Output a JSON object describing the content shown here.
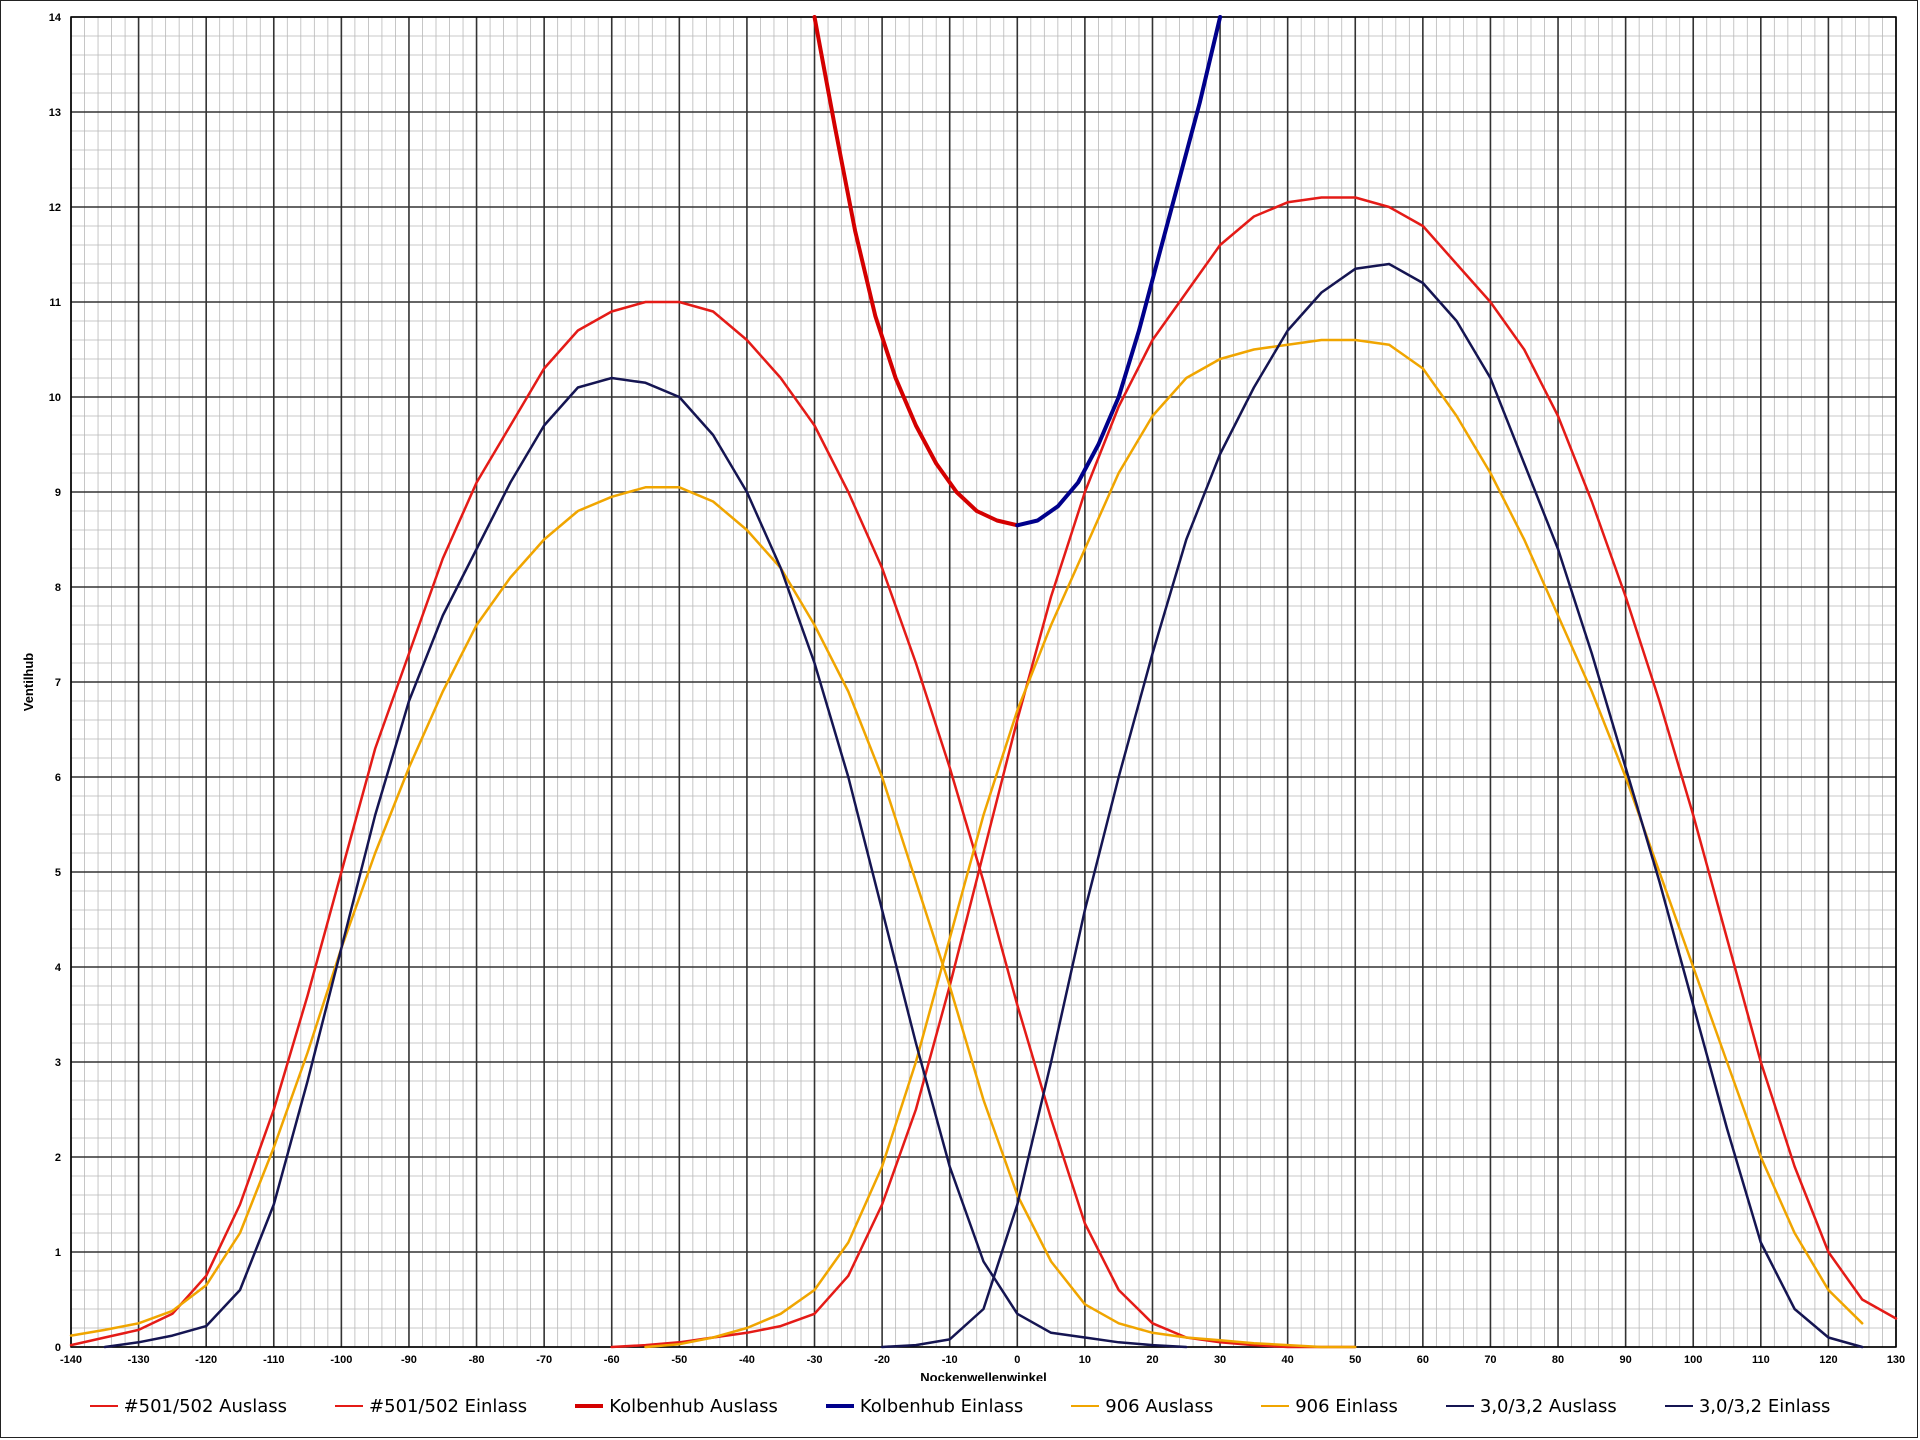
{
  "chart_data": {
    "type": "line",
    "title": "",
    "xlabel": "Nockenwellenwinkel",
    "ylabel": "Ventilhub",
    "xlim": [
      -140,
      130
    ],
    "ylim": [
      0,
      14
    ],
    "grid": true,
    "legend_position": "bottom",
    "x_ticks": [
      "-140",
      "-130",
      "-120",
      "-110",
      "-100",
      "-90",
      "-80",
      "-70",
      "-60",
      "-50",
      "-40",
      "-30",
      "-20",
      "-10",
      "0",
      "10",
      "20",
      "30",
      "40",
      "50",
      "60",
      "70",
      "80",
      "90",
      "100",
      "110",
      "120",
      "130"
    ],
    "y_ticks": [
      "0",
      "1",
      "2",
      "3",
      "4",
      "5",
      "6",
      "7",
      "8",
      "9",
      "10",
      "11",
      "12",
      "13",
      "14"
    ],
    "series": [
      {
        "name": "#501/502 Auslass",
        "color": "#e41b17",
        "width": 2.5,
        "x": [
          -140,
          -135,
          -130,
          -125,
          -120,
          -115,
          -110,
          -105,
          -100,
          -95,
          -90,
          -85,
          -80,
          -75,
          -70,
          -65,
          -60,
          -55,
          -50,
          -45,
          -40,
          -35,
          -30,
          -25,
          -20,
          -15,
          -10,
          -5,
          0,
          5,
          10,
          15,
          20,
          25,
          30,
          35,
          40,
          45,
          50
        ],
        "y": [
          0.02,
          0.1,
          0.18,
          0.35,
          0.75,
          1.5,
          2.5,
          3.7,
          5.0,
          6.3,
          7.3,
          8.3,
          9.1,
          9.7,
          10.3,
          10.7,
          10.9,
          11.0,
          11.0,
          10.9,
          10.6,
          10.2,
          9.7,
          9.0,
          8.2,
          7.2,
          6.1,
          4.9,
          3.6,
          2.4,
          1.3,
          0.6,
          0.25,
          0.1,
          0.05,
          0.02,
          0.0,
          0.0,
          0.0
        ]
      },
      {
        "name": "#501/502 Einlass",
        "color": "#e41b17",
        "width": 2.5,
        "x": [
          -60,
          -55,
          -50,
          -45,
          -40,
          -35,
          -30,
          -25,
          -20,
          -15,
          -10,
          -5,
          0,
          5,
          10,
          15,
          20,
          25,
          30,
          35,
          40,
          45,
          50,
          55,
          60,
          65,
          70,
          75,
          80,
          85,
          90,
          95,
          100,
          105,
          110,
          115,
          120,
          125,
          130
        ],
        "y": [
          0.0,
          0.02,
          0.05,
          0.1,
          0.15,
          0.22,
          0.35,
          0.75,
          1.5,
          2.5,
          3.8,
          5.2,
          6.6,
          7.9,
          9.0,
          9.9,
          10.6,
          11.1,
          11.6,
          11.9,
          12.05,
          12.1,
          12.1,
          12.0,
          11.8,
          11.4,
          11.0,
          10.5,
          9.8,
          8.9,
          7.9,
          6.8,
          5.6,
          4.3,
          3.0,
          1.9,
          1.0,
          0.5,
          0.3
        ]
      },
      {
        "name": "Kolbenhub Auslass",
        "color": "#d40000",
        "width": 4,
        "x": [
          -30,
          -27,
          -24,
          -21,
          -18,
          -15,
          -12,
          -9,
          -6,
          -3,
          0
        ],
        "y": [
          14.0,
          12.85,
          11.75,
          10.85,
          10.2,
          9.7,
          9.3,
          9.0,
          8.8,
          8.7,
          8.65
        ]
      },
      {
        "name": "Kolbenhub Einlass",
        "color": "#00008b",
        "width": 4,
        "x": [
          0,
          3,
          6,
          9,
          12,
          15,
          18,
          21,
          24,
          27,
          30
        ],
        "y": [
          8.65,
          8.7,
          8.85,
          9.1,
          9.5,
          10.0,
          10.7,
          11.5,
          12.3,
          13.1,
          14.0
        ]
      },
      {
        "name": "906 Auslass",
        "color": "#f0a500",
        "width": 2.5,
        "x": [
          -140,
          -135,
          -130,
          -125,
          -120,
          -115,
          -110,
          -105,
          -100,
          -95,
          -90,
          -85,
          -80,
          -75,
          -70,
          -65,
          -60,
          -55,
          -50,
          -45,
          -40,
          -35,
          -30,
          -25,
          -20,
          -15,
          -10,
          -5,
          0,
          5,
          10,
          15,
          20,
          25,
          30,
          35,
          40,
          45,
          50
        ],
        "y": [
          0.12,
          0.18,
          0.25,
          0.38,
          0.65,
          1.2,
          2.1,
          3.1,
          4.2,
          5.2,
          6.1,
          6.9,
          7.6,
          8.1,
          8.5,
          8.8,
          8.95,
          9.05,
          9.05,
          8.9,
          8.6,
          8.2,
          7.6,
          6.9,
          6.0,
          4.9,
          3.8,
          2.6,
          1.6,
          0.9,
          0.45,
          0.25,
          0.15,
          0.1,
          0.07,
          0.04,
          0.02,
          0.0,
          0.0
        ]
      },
      {
        "name": "906 Einlass",
        "color": "#f0a500",
        "width": 2.5,
        "x": [
          -55,
          -50,
          -45,
          -40,
          -35,
          -30,
          -25,
          -20,
          -15,
          -10,
          -5,
          0,
          5,
          10,
          15,
          20,
          25,
          30,
          35,
          40,
          45,
          50,
          55,
          60,
          65,
          70,
          75,
          80,
          85,
          90,
          95,
          100,
          105,
          110,
          115,
          120,
          125
        ],
        "y": [
          0.0,
          0.03,
          0.1,
          0.2,
          0.35,
          0.6,
          1.1,
          1.9,
          3.0,
          4.3,
          5.6,
          6.7,
          7.6,
          8.4,
          9.2,
          9.8,
          10.2,
          10.4,
          10.5,
          10.55,
          10.6,
          10.6,
          10.55,
          10.3,
          9.8,
          9.2,
          8.5,
          7.7,
          6.9,
          6.0,
          5.0,
          4.0,
          3.0,
          2.0,
          1.2,
          0.6,
          0.25
        ]
      },
      {
        "name": "3,0/3,2 Auslass",
        "color": "#151552",
        "width": 2.5,
        "x": [
          -135,
          -130,
          -125,
          -120,
          -115,
          -110,
          -105,
          -100,
          -95,
          -90,
          -85,
          -80,
          -75,
          -70,
          -65,
          -60,
          -55,
          -50,
          -45,
          -40,
          -35,
          -30,
          -25,
          -20,
          -15,
          -10,
          -5,
          0,
          5,
          10,
          15,
          20,
          25
        ],
        "y": [
          0.0,
          0.05,
          0.12,
          0.22,
          0.6,
          1.5,
          2.8,
          4.2,
          5.6,
          6.8,
          7.7,
          8.4,
          9.1,
          9.7,
          10.1,
          10.2,
          10.15,
          10.0,
          9.6,
          9.0,
          8.2,
          7.2,
          6.0,
          4.6,
          3.2,
          1.9,
          0.9,
          0.35,
          0.15,
          0.1,
          0.05,
          0.02,
          0.0
        ]
      },
      {
        "name": "3,0/3,2 Einlass",
        "color": "#151552",
        "width": 2.5,
        "x": [
          -20,
          -15,
          -10,
          -5,
          0,
          5,
          10,
          15,
          20,
          25,
          30,
          35,
          40,
          45,
          50,
          55,
          60,
          65,
          70,
          75,
          80,
          85,
          90,
          95,
          100,
          105,
          110,
          115,
          120,
          125
        ],
        "y": [
          0.0,
          0.02,
          0.08,
          0.4,
          1.5,
          3.0,
          4.6,
          6.0,
          7.3,
          8.5,
          9.4,
          10.1,
          10.7,
          11.1,
          11.35,
          11.4,
          11.2,
          10.8,
          10.2,
          9.3,
          8.4,
          7.3,
          6.1,
          4.9,
          3.6,
          2.3,
          1.1,
          0.4,
          0.1,
          0.0
        ]
      }
    ]
  }
}
